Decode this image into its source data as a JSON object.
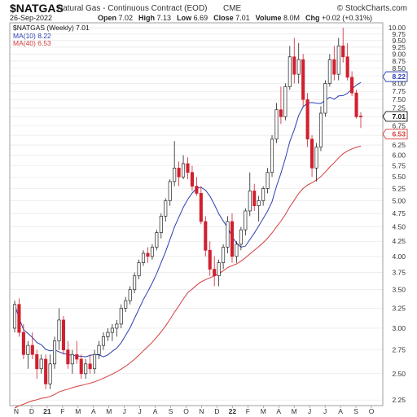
{
  "header": {
    "symbol": "$NATGAS",
    "name": "Natural Gas - Continuous Contract (EOD)",
    "exchange": "CME",
    "credit": "© StockCharts.com",
    "date": "26-Sep-2022",
    "ohlc": [
      {
        "label": "Open",
        "value": "7.02"
      },
      {
        "label": "High",
        "value": "7.13"
      },
      {
        "label": "Low",
        "value": "6.69"
      },
      {
        "label": "Close",
        "value": "7.01"
      },
      {
        "label": "Volume",
        "value": "8.0M"
      },
      {
        "label": "Chg",
        "value": "+0.02 (+0.31%)"
      }
    ]
  },
  "legend": [
    {
      "text": "$NATGAS (Weekly) 7.01",
      "color": "#111111"
    },
    {
      "text": "MA(10) 8.22",
      "color": "#2a3fb0"
    },
    {
      "text": "MA(40) 6.53",
      "color": "#d63a3a"
    }
  ],
  "price_tags": [
    {
      "value": 8.22,
      "text": "8.22",
      "color": "#2a3fb0"
    },
    {
      "value": 7.01,
      "text": "7.01",
      "color": "#111111"
    },
    {
      "value": 6.53,
      "text": "6.53",
      "color": "#d63a3a"
    }
  ],
  "chart_data": {
    "type": "candlestick",
    "title": "$NATGAS",
    "y_scale": "log",
    "ylim": [
      2.2,
      10.2
    ],
    "y_ticks": [
      "2.25",
      "2.50",
      "2.75",
      "3.00",
      "3.25",
      "3.50",
      "3.75",
      "4.00",
      "4.25",
      "4.50",
      "4.75",
      "5.00",
      "5.25",
      "5.50",
      "5.75",
      "6.00",
      "6.25",
      "6.50",
      "6.75",
      "7.00",
      "7.25",
      "7.50",
      "7.75",
      "8.00",
      "8.25",
      "8.50",
      "8.75",
      "9.00",
      "9.25",
      "9.50",
      "9.75",
      "10.00"
    ],
    "x_labels": [
      "N",
      "D",
      "21",
      "F",
      "M",
      "A",
      "M",
      "J",
      "J",
      "A",
      "S",
      "O",
      "N",
      "D",
      "22",
      "F",
      "M",
      "A",
      "M",
      "J",
      "J",
      "A",
      "S",
      "O"
    ],
    "colors": {
      "up": "#ffffff",
      "down": "#d0202e",
      "ma10": "#2a3fb0",
      "ma40": "#d63a3a",
      "grid": "#e3e3e3"
    },
    "ohlc": [
      [
        3.0,
        3.35,
        2.95,
        3.3
      ],
      [
        3.3,
        3.38,
        2.9,
        2.95
      ],
      [
        2.95,
        3.05,
        2.65,
        2.7
      ],
      [
        2.7,
        2.85,
        2.55,
        2.8
      ],
      [
        2.8,
        2.95,
        2.65,
        2.7
      ],
      [
        2.7,
        2.75,
        2.45,
        2.55
      ],
      [
        2.55,
        2.7,
        2.5,
        2.65
      ],
      [
        2.65,
        2.7,
        2.35,
        2.4
      ],
      [
        2.4,
        2.7,
        2.35,
        2.6
      ],
      [
        2.6,
        2.9,
        2.55,
        2.85
      ],
      [
        2.85,
        3.25,
        2.75,
        3.1
      ],
      [
        3.1,
        3.15,
        2.7,
        2.75
      ],
      [
        2.75,
        2.85,
        2.55,
        2.6
      ],
      [
        2.6,
        2.75,
        2.5,
        2.7
      ],
      [
        2.7,
        2.85,
        2.6,
        2.65
      ],
      [
        2.65,
        2.7,
        2.45,
        2.5
      ],
      [
        2.5,
        2.65,
        2.45,
        2.6
      ],
      [
        2.6,
        2.7,
        2.5,
        2.55
      ],
      [
        2.55,
        2.75,
        2.5,
        2.7
      ],
      [
        2.7,
        2.85,
        2.65,
        2.8
      ],
      [
        2.8,
        2.95,
        2.75,
        2.9
      ],
      [
        2.9,
        3.0,
        2.85,
        2.95
      ],
      [
        2.95,
        3.05,
        2.85,
        3.0
      ],
      [
        3.0,
        3.1,
        2.9,
        3.05
      ],
      [
        3.05,
        3.3,
        3.0,
        3.25
      ],
      [
        3.25,
        3.4,
        3.2,
        3.35
      ],
      [
        3.35,
        3.55,
        3.3,
        3.5
      ],
      [
        3.5,
        3.75,
        3.45,
        3.7
      ],
      [
        3.7,
        3.95,
        3.65,
        3.9
      ],
      [
        3.9,
        4.1,
        3.85,
        4.05
      ],
      [
        4.05,
        4.15,
        3.9,
        4.0
      ],
      [
        4.0,
        4.2,
        3.95,
        4.15
      ],
      [
        4.15,
        4.45,
        4.1,
        4.4
      ],
      [
        4.4,
        4.75,
        4.3,
        4.7
      ],
      [
        4.7,
        5.05,
        4.6,
        5.0
      ],
      [
        5.0,
        5.45,
        4.9,
        5.4
      ],
      [
        5.4,
        6.35,
        5.3,
        5.7
      ],
      [
        5.7,
        5.85,
        5.3,
        5.5
      ],
      [
        5.5,
        6.0,
        5.45,
        5.8
      ],
      [
        5.8,
        5.95,
        5.45,
        5.6
      ],
      [
        5.6,
        5.75,
        5.2,
        5.3
      ],
      [
        5.3,
        5.5,
        5.1,
        5.15
      ],
      [
        5.15,
        5.3,
        4.55,
        4.6
      ],
      [
        4.6,
        4.7,
        4.0,
        4.1
      ],
      [
        4.1,
        4.25,
        3.7,
        3.8
      ],
      [
        3.8,
        4.0,
        3.55,
        3.7
      ],
      [
        3.7,
        3.95,
        3.55,
        3.9
      ],
      [
        3.9,
        4.2,
        3.8,
        4.15
      ],
      [
        4.15,
        4.7,
        4.05,
        4.6
      ],
      [
        4.6,
        4.75,
        3.9,
        4.0
      ],
      [
        4.0,
        4.25,
        3.9,
        4.2
      ],
      [
        4.2,
        4.5,
        4.1,
        4.45
      ],
      [
        4.45,
        4.85,
        4.35,
        4.8
      ],
      [
        4.8,
        5.6,
        4.7,
        5.2
      ],
      [
        5.2,
        5.35,
        4.8,
        4.9
      ],
      [
        4.9,
        5.1,
        4.6,
        5.0
      ],
      [
        5.0,
        5.3,
        4.9,
        5.25
      ],
      [
        5.25,
        5.7,
        5.15,
        5.6
      ],
      [
        5.6,
        6.5,
        5.5,
        6.4
      ],
      [
        6.4,
        7.4,
        6.3,
        7.2
      ],
      [
        7.2,
        7.9,
        6.8,
        7.0
      ],
      [
        7.0,
        8.0,
        6.9,
        7.9
      ],
      [
        7.9,
        9.3,
        7.8,
        8.9
      ],
      [
        8.9,
        9.6,
        8.0,
        8.3
      ],
      [
        8.3,
        9.4,
        8.0,
        8.8
      ],
      [
        8.8,
        9.0,
        7.3,
        7.5
      ],
      [
        7.5,
        7.7,
        6.2,
        6.4
      ],
      [
        6.4,
        6.5,
        5.5,
        5.7
      ],
      [
        5.7,
        6.3,
        5.4,
        6.2
      ],
      [
        6.2,
        7.3,
        6.1,
        7.1
      ],
      [
        7.1,
        8.1,
        7.0,
        8.0
      ],
      [
        8.0,
        9.0,
        7.9,
        8.8
      ],
      [
        8.8,
        9.3,
        8.1,
        8.3
      ],
      [
        8.3,
        9.6,
        8.1,
        9.3
      ],
      [
        9.3,
        10.0,
        8.7,
        8.9
      ],
      [
        8.9,
        9.4,
        8.1,
        8.2
      ],
      [
        8.2,
        8.4,
        7.6,
        7.7
      ],
      [
        7.7,
        7.8,
        6.95,
        7.0
      ],
      [
        7.02,
        7.13,
        6.69,
        7.01
      ]
    ]
  }
}
